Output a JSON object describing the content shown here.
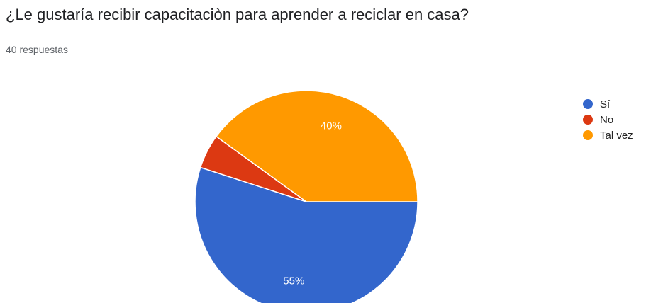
{
  "header": {
    "title": "¿Le gustaría recibir capacitaciòn para aprender a reciclar en casa?",
    "responses": "40 respuestas"
  },
  "chart_data": {
    "type": "pie",
    "categories": [
      "Sí",
      "No",
      "Tal vez"
    ],
    "values": [
      55,
      5,
      40
    ],
    "value_labels": [
      "55%",
      "",
      "40%"
    ],
    "colors": [
      "#3366cc",
      "#dc3912",
      "#ff9900"
    ],
    "legend_position": "right"
  }
}
